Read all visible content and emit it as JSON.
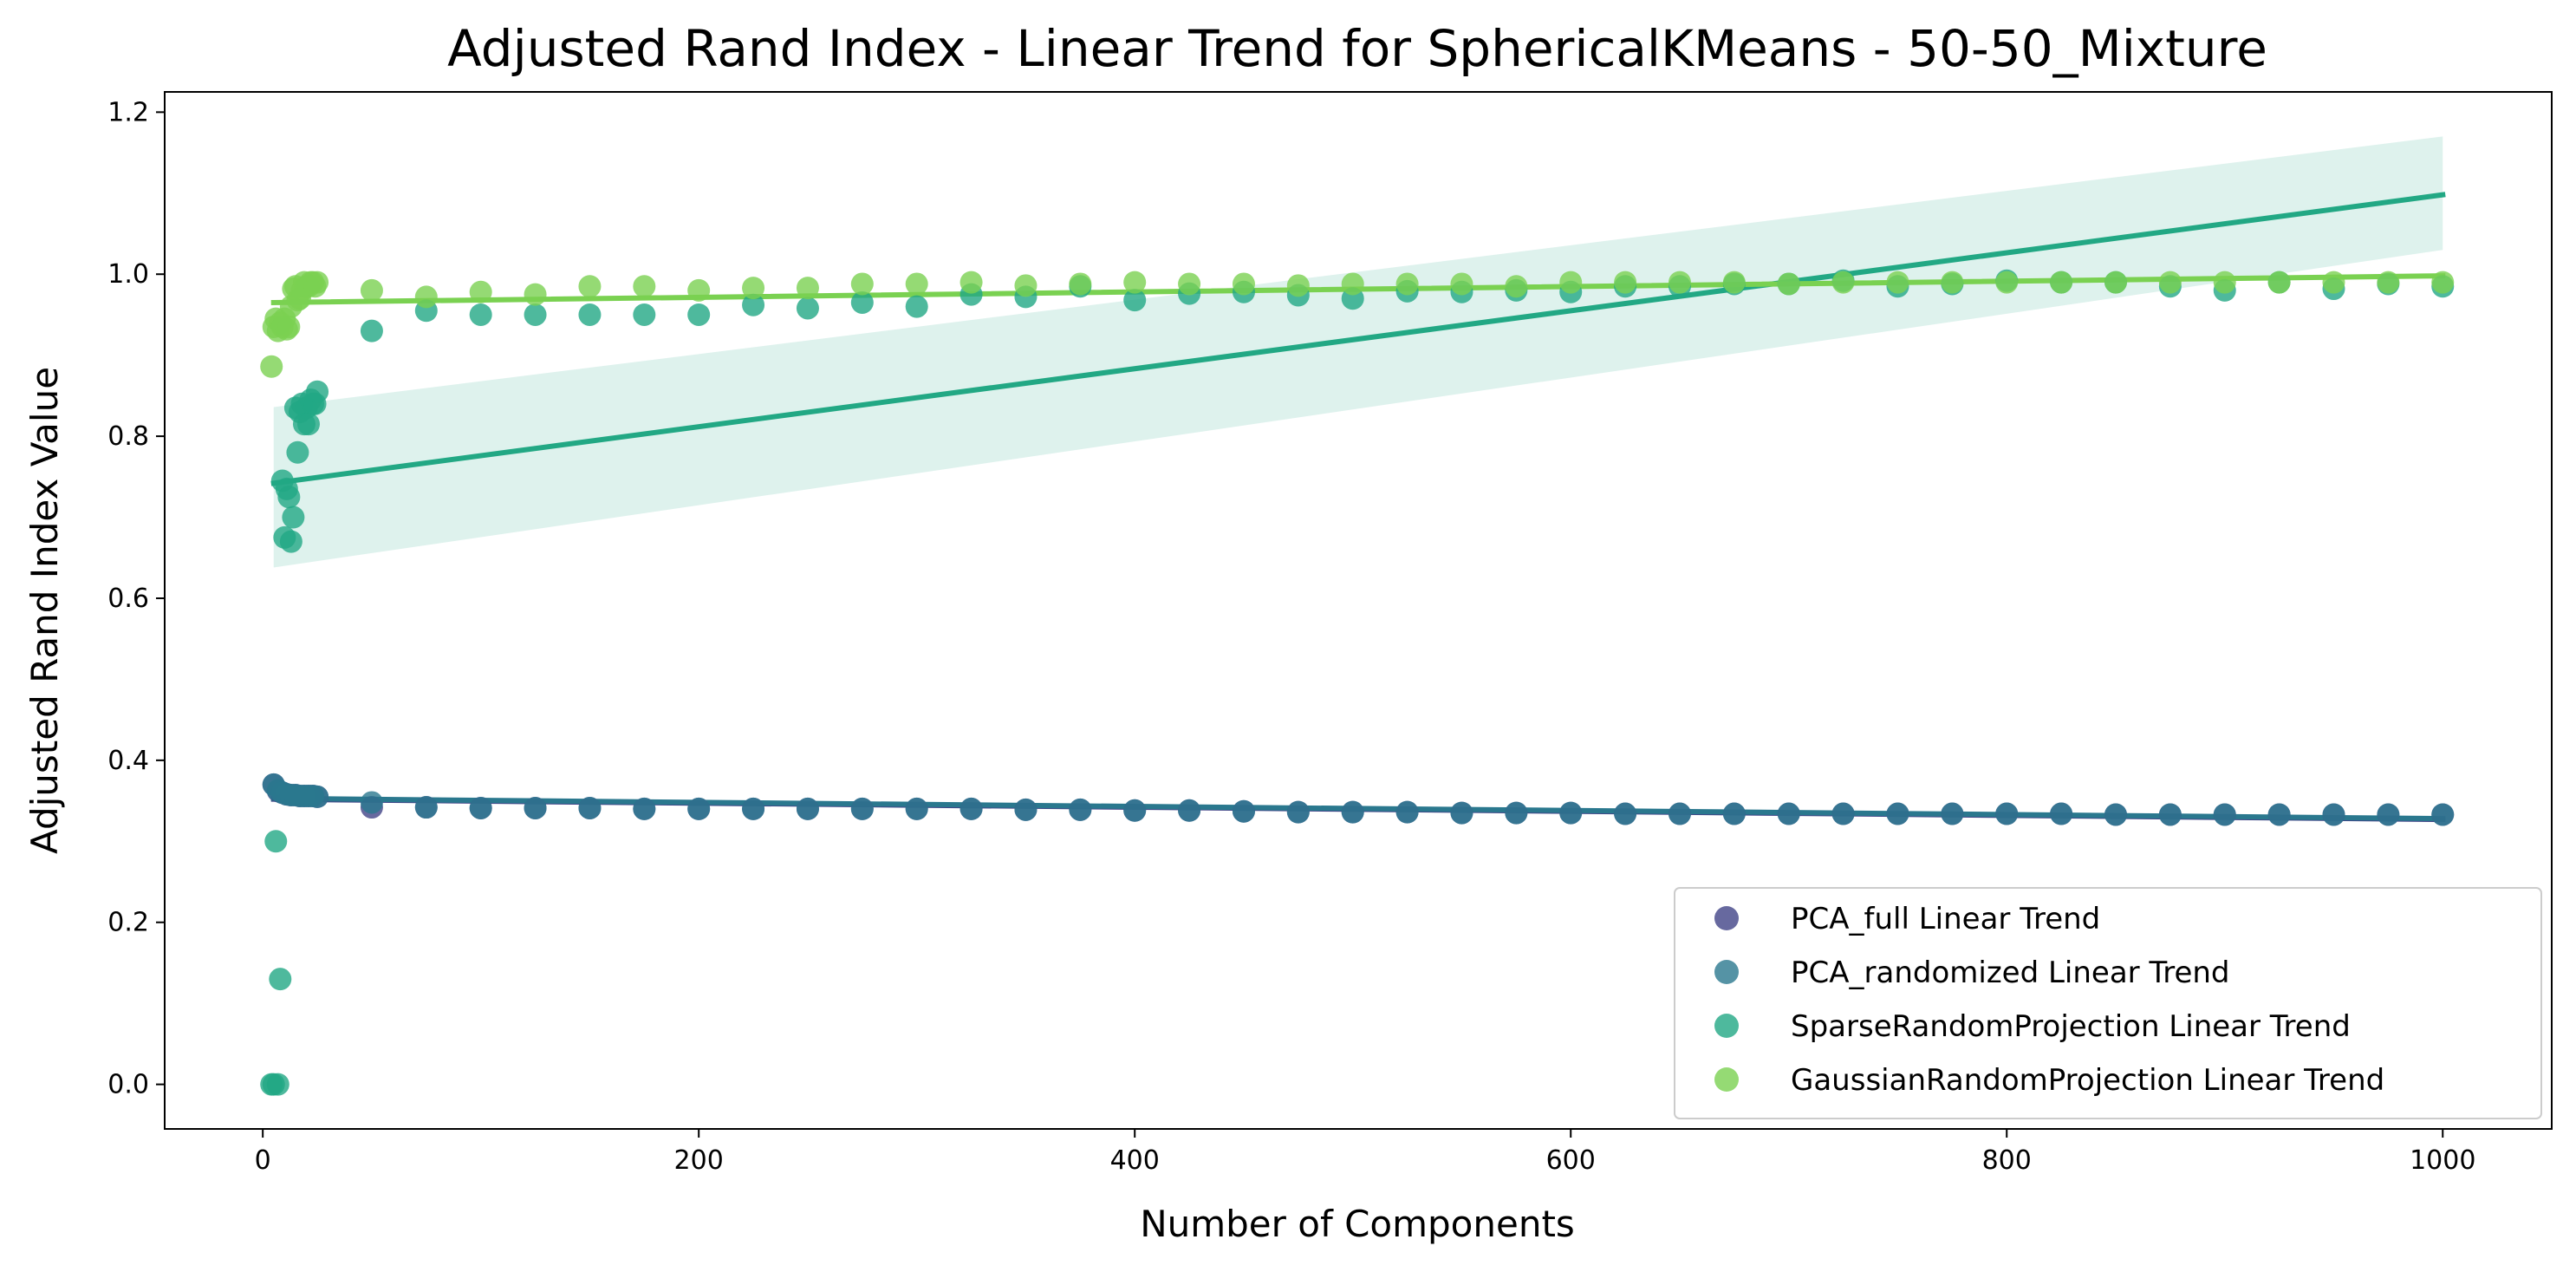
{
  "chart_data": {
    "type": "scatter",
    "title": "Adjusted Rand Index - Linear Trend for SphericalKMeans - 50-50_Mixture",
    "xlabel": "Number of Components",
    "ylabel": "Adjusted Rand Index Value",
    "xlim": [
      -45,
      1050
    ],
    "ylim": [
      -0.055,
      1.225
    ],
    "xticks": [
      0,
      200,
      400,
      600,
      800,
      1000
    ],
    "yticks": [
      0.0,
      0.2,
      0.4,
      0.6,
      0.8,
      1.0,
      1.2
    ],
    "grid": false,
    "legend_position": "lower-right",
    "series": [
      {
        "name": "PCA_full Linear Trend",
        "color": "#414487",
        "x": [
          5,
          7,
          9,
          11,
          13,
          15,
          17,
          19,
          21,
          23,
          25,
          50,
          75,
          100,
          125,
          150,
          175,
          200,
          225,
          250,
          275,
          300,
          325,
          350,
          375,
          400,
          425,
          450,
          475,
          500,
          525,
          550,
          575,
          600,
          625,
          650,
          675,
          700,
          725,
          750,
          775,
          800,
          825,
          850,
          875,
          900,
          925,
          950,
          975,
          1000
        ],
        "y": [
          0.37,
          0.362,
          0.36,
          0.358,
          0.357,
          0.357,
          0.356,
          0.356,
          0.356,
          0.356,
          0.355,
          0.342,
          0.342,
          0.341,
          0.341,
          0.341,
          0.34,
          0.34,
          0.34,
          0.34,
          0.34,
          0.34,
          0.34,
          0.339,
          0.339,
          0.338,
          0.338,
          0.337,
          0.336,
          0.336,
          0.336,
          0.335,
          0.335,
          0.335,
          0.334,
          0.334,
          0.334,
          0.334,
          0.334,
          0.334,
          0.334,
          0.334,
          0.334,
          0.333,
          0.333,
          0.333,
          0.333,
          0.333,
          0.333,
          0.333
        ],
        "trend": {
          "x": [
            5,
            1000
          ],
          "y": [
            0.352,
            0.327
          ]
        }
      },
      {
        "name": "PCA_randomized Linear Trend",
        "color": "#2A788E",
        "x": [
          5,
          7,
          9,
          11,
          13,
          15,
          17,
          19,
          21,
          23,
          25,
          50,
          75,
          100,
          125,
          150,
          175,
          200,
          225,
          250,
          275,
          300,
          325,
          350,
          375,
          400,
          425,
          450,
          475,
          500,
          525,
          550,
          575,
          600,
          625,
          650,
          675,
          700,
          725,
          750,
          775,
          800,
          825,
          850,
          875,
          900,
          925,
          950,
          975,
          1000
        ],
        "y": [
          0.37,
          0.363,
          0.36,
          0.358,
          0.357,
          0.357,
          0.356,
          0.356,
          0.356,
          0.356,
          0.355,
          0.348,
          0.342,
          0.341,
          0.341,
          0.341,
          0.34,
          0.34,
          0.34,
          0.34,
          0.34,
          0.34,
          0.34,
          0.339,
          0.339,
          0.338,
          0.338,
          0.337,
          0.336,
          0.336,
          0.336,
          0.335,
          0.335,
          0.335,
          0.334,
          0.334,
          0.334,
          0.334,
          0.334,
          0.334,
          0.334,
          0.334,
          0.334,
          0.333,
          0.333,
          0.333,
          0.333,
          0.333,
          0.333,
          0.333
        ],
        "trend": {
          "x": [
            5,
            1000
          ],
          "y": [
            0.353,
            0.328
          ]
        }
      },
      {
        "name": "SparseRandomProjection Linear Trend",
        "color": "#22A884",
        "x": [
          4,
          5,
          6,
          7,
          8,
          9,
          10,
          11,
          12,
          13,
          14,
          15,
          16,
          17,
          18,
          19,
          20,
          21,
          22,
          23,
          24,
          25,
          50,
          75,
          100,
          125,
          150,
          175,
          200,
          225,
          250,
          275,
          300,
          325,
          350,
          375,
          400,
          425,
          450,
          475,
          500,
          525,
          550,
          575,
          600,
          625,
          650,
          675,
          700,
          725,
          750,
          775,
          800,
          825,
          850,
          875,
          900,
          925,
          950,
          975,
          1000
        ],
        "y": [
          0.0,
          0.0,
          0.3,
          0.0,
          0.13,
          0.745,
          0.675,
          0.735,
          0.725,
          0.67,
          0.7,
          0.835,
          0.78,
          0.83,
          0.84,
          0.815,
          0.835,
          0.815,
          0.845,
          0.84,
          0.84,
          0.855,
          0.93,
          0.955,
          0.95,
          0.95,
          0.95,
          0.95,
          0.95,
          0.962,
          0.958,
          0.965,
          0.96,
          0.975,
          0.972,
          0.985,
          0.968,
          0.976,
          0.978,
          0.974,
          0.97,
          0.979,
          0.978,
          0.98,
          0.978,
          0.985,
          0.985,
          0.988,
          0.988,
          0.992,
          0.985,
          0.988,
          0.992,
          0.99,
          0.99,
          0.985,
          0.98,
          0.99,
          0.982,
          0.988,
          0.985
        ],
        "trend": {
          "x": [
            5,
            1000
          ],
          "y": [
            0.742,
            1.098
          ]
        },
        "ci": {
          "x": [
            5,
            1000
          ],
          "lower": [
            0.638,
            1.03
          ],
          "upper": [
            0.836,
            1.17
          ]
        }
      },
      {
        "name": "GaussianRandomProjection Linear Trend",
        "color": "#7AD151",
        "x": [
          4,
          5,
          6,
          7,
          8,
          9,
          10,
          11,
          12,
          13,
          14,
          15,
          16,
          17,
          18,
          19,
          20,
          21,
          22,
          23,
          24,
          25,
          50,
          75,
          100,
          125,
          150,
          175,
          200,
          225,
          250,
          275,
          300,
          325,
          350,
          375,
          400,
          425,
          450,
          475,
          500,
          525,
          550,
          575,
          600,
          625,
          650,
          675,
          700,
          725,
          750,
          775,
          800,
          825,
          850,
          875,
          900,
          925,
          950,
          975,
          1000
        ],
        "y": [
          0.886,
          0.935,
          0.945,
          0.93,
          0.94,
          0.935,
          0.945,
          0.932,
          0.935,
          0.96,
          0.982,
          0.985,
          0.968,
          0.97,
          0.98,
          0.99,
          0.985,
          0.985,
          0.99,
          0.99,
          0.985,
          0.99,
          0.98,
          0.972,
          0.978,
          0.975,
          0.985,
          0.985,
          0.98,
          0.983,
          0.983,
          0.988,
          0.988,
          0.99,
          0.986,
          0.988,
          0.99,
          0.988,
          0.988,
          0.986,
          0.988,
          0.988,
          0.988,
          0.985,
          0.99,
          0.99,
          0.99,
          0.99,
          0.988,
          0.99,
          0.99,
          0.99,
          0.99,
          0.99,
          0.99,
          0.99,
          0.99,
          0.99,
          0.99,
          0.99,
          0.99
        ],
        "trend": {
          "x": [
            5,
            1000
          ],
          "y": [
            0.965,
            0.998
          ]
        }
      }
    ]
  }
}
